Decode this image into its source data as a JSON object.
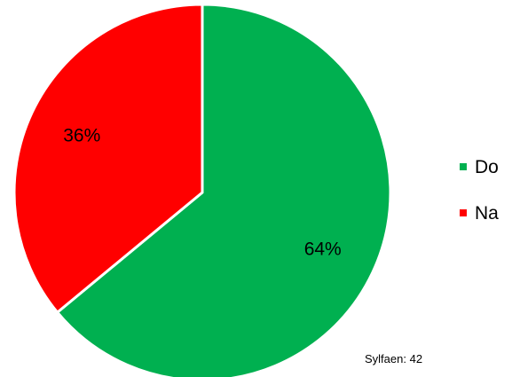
{
  "chart_data": {
    "type": "pie",
    "title": "",
    "slices": [
      {
        "label": "Do",
        "value": 64,
        "display": "64%",
        "color": "#00b050"
      },
      {
        "label": "Na",
        "value": 36,
        "display": "36%",
        "color": "#ff0000"
      }
    ],
    "legend_position": "right",
    "start_angle": "12 o'clock",
    "direction": "clockwise",
    "footnote": "Sylfaen: 42"
  }
}
